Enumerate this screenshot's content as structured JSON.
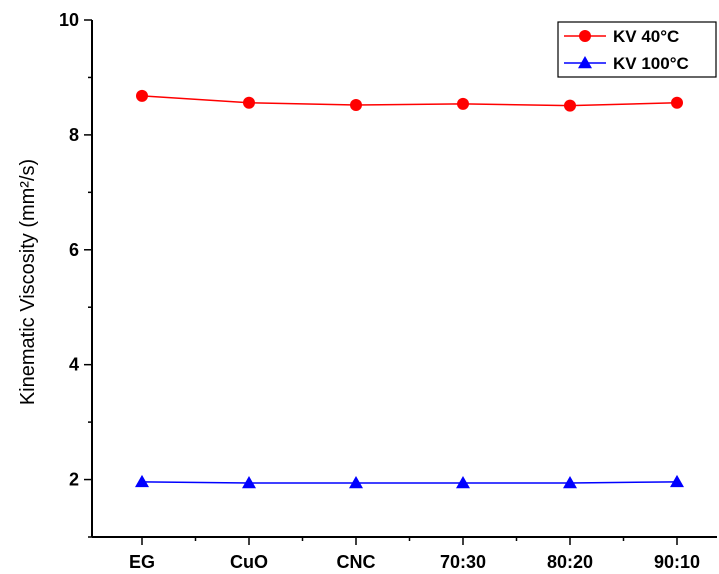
{
  "chart_data": {
    "type": "line",
    "title": "",
    "xlabel": "",
    "ylabel": "Kinematic Viscosity (mm²/s)",
    "categories": [
      "EG",
      "CuO",
      "CNC",
      "70:30",
      "80:20",
      "90:10"
    ],
    "ylim": [
      1,
      10
    ],
    "yticks": [
      2,
      4,
      6,
      8,
      10
    ],
    "grid": false,
    "legend_position": "top-right",
    "series": [
      {
        "name": "KV 40°C",
        "values": [
          8.68,
          8.56,
          8.52,
          8.54,
          8.51,
          8.56
        ],
        "color": "#ff0000",
        "marker": "circle"
      },
      {
        "name": "KV 100°C",
        "values": [
          1.96,
          1.94,
          1.94,
          1.94,
          1.94,
          1.96
        ],
        "color": "#0000ff",
        "marker": "triangle"
      }
    ]
  }
}
